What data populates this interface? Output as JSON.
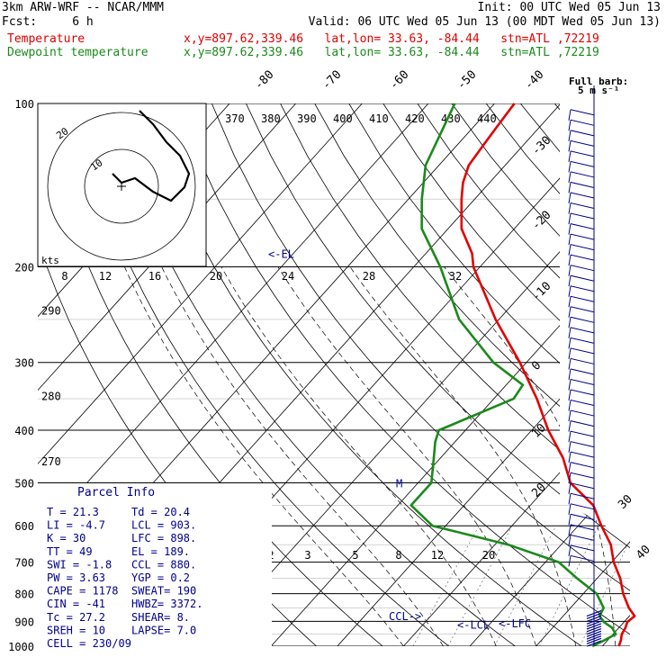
{
  "header": {
    "model": "3km ARW-WRF -- NCAR/MMM",
    "init": "Init: 00 UTC Wed 05 Jun 13",
    "fcst": "Fcst:     6 h",
    "valid": "Valid: 06 UTC Wed 05 Jun 13 (00 MDT Wed 05 Jun 13)",
    "temp_label": "Temperature",
    "temp_info": "x,y=897.62,339.46   lat,lon= 33.63, -84.44   stn=ATL ,72219",
    "dew_label": "Dewpoint temperature",
    "dew_info": "x,y=897.62,339.46   lat,lon= 33.63, -84.44   stn=ATL ,72219"
  },
  "colors": {
    "temperature": "#e00000",
    "dewpoint": "#1a8a1a",
    "info": "#00008b",
    "hodograph": "#000000"
  },
  "wind_barb_label": "Full barb:\n5 m s⁻¹",
  "hodograph": {
    "unit_label": "kts",
    "ring_labels": [
      "20",
      "10"
    ],
    "points_kts": [
      [
        0,
        0
      ],
      [
        2,
        -2
      ],
      [
        5,
        -1
      ],
      [
        9,
        -4
      ],
      [
        13,
        -6
      ],
      [
        16,
        -3
      ],
      [
        17,
        0
      ],
      [
        15,
        4
      ],
      [
        12,
        7
      ],
      [
        9,
        11
      ],
      [
        6,
        14
      ]
    ]
  },
  "parcel_info": {
    "title": "Parcel Info",
    "rows": [
      [
        "T   =    21.3",
        "Td =  20.4"
      ],
      [
        "LI  =    -4.7",
        "LCL =  903."
      ],
      [
        "K   =      30",
        "LFC =  898."
      ],
      [
        "TT  =      49",
        "EL  =  189."
      ],
      [
        "SWI =    -1.8",
        "CCL =  880."
      ],
      [
        "PW  =    3.63",
        "YGP =   0.2"
      ],
      [
        "CAPE =   1178",
        "SWEAT=  190"
      ],
      [
        "CIN  =    -41",
        "HWBZ= 3372."
      ],
      [
        "Tc   =   27.2",
        "SHEAR=   8."
      ],
      [
        "SREH =     10",
        "LAPSE=  7.0"
      ],
      [
        "CELL = 230/09",
        ""
      ]
    ]
  },
  "chart_data": {
    "type": "line",
    "title": "",
    "pressure_levels_hpa": [
      100,
      200,
      300,
      400,
      500,
      600,
      700,
      800,
      900,
      1000
    ],
    "temperature_labels_top": [
      "-80",
      "-70",
      "-60",
      "-50",
      "-40"
    ],
    "temperature_labels_right": [
      "-30",
      "-20",
      "-10",
      "0",
      "10",
      "20",
      "30",
      "40"
    ],
    "theta_labels_top": [
      "370",
      "380",
      "390",
      "400",
      "410",
      "420",
      "430",
      "440"
    ],
    "theta_labels_left": [
      {
        "text": "290",
        "p": 240
      },
      {
        "text": "280",
        "p": 345
      },
      {
        "text": "270",
        "p": 455
      }
    ],
    "mixing_ratio_labels_mid": [
      "8",
      "12",
      "16",
      "20",
      "24",
      "28",
      "32"
    ],
    "mixing_ratio_labels_low": [
      "2",
      "3",
      "5",
      "8",
      "12",
      "20"
    ],
    "series": [
      {
        "name": "Temperature",
        "points": [
          [
            1000,
            22.5
          ],
          [
            975,
            22.0
          ],
          [
            950,
            21.3
          ],
          [
            925,
            21.0
          ],
          [
            903,
            20.5
          ],
          [
            880,
            20.8
          ],
          [
            850,
            18.8
          ],
          [
            800,
            16.0
          ],
          [
            750,
            13.5
          ],
          [
            700,
            10.3
          ],
          [
            650,
            7.5
          ],
          [
            600,
            3.5
          ],
          [
            550,
            -0.5
          ],
          [
            500,
            -7.0
          ],
          [
            450,
            -11.5
          ],
          [
            400,
            -17.5
          ],
          [
            350,
            -23.5
          ],
          [
            300,
            -31.0
          ],
          [
            250,
            -40.5
          ],
          [
            200,
            -51.0
          ],
          [
            189,
            -53.0
          ],
          [
            170,
            -58.0
          ],
          [
            150,
            -62.0
          ],
          [
            140,
            -64.0
          ],
          [
            130,
            -65.5
          ],
          [
            120,
            -66.0
          ],
          [
            110,
            -66.5
          ],
          [
            100,
            -67.0
          ]
        ]
      },
      {
        "name": "Dewpoint temperature",
        "points": [
          [
            1000,
            18.5
          ],
          [
            975,
            19.5
          ],
          [
            950,
            20.4
          ],
          [
            925,
            19.0
          ],
          [
            903,
            17.0
          ],
          [
            880,
            15.5
          ],
          [
            850,
            15.0
          ],
          [
            800,
            12.0
          ],
          [
            750,
            7.0
          ],
          [
            700,
            2.0
          ],
          [
            650,
            -8.0
          ],
          [
            600,
            -22.0
          ],
          [
            550,
            -28.0
          ],
          [
            500,
            -28.0
          ],
          [
            450,
            -31.0
          ],
          [
            420,
            -33.0
          ],
          [
            400,
            -34.0
          ],
          [
            350,
            -27.0
          ],
          [
            330,
            -27.5
          ],
          [
            300,
            -35.0
          ],
          [
            250,
            -46.0
          ],
          [
            200,
            -56.0
          ],
          [
            170,
            -64.0
          ],
          [
            150,
            -68.0
          ],
          [
            130,
            -72.0
          ],
          [
            100,
            -76.0
          ]
        ]
      }
    ],
    "annotations": [
      {
        "text": "<-EL",
        "p": 189
      },
      {
        "text": "M",
        "p": 500
      },
      {
        "text": "CCL->",
        "p": 880
      },
      {
        "text": "<-LCL",
        "p": 903
      },
      {
        "text": "<-LFC",
        "p": 898
      }
    ]
  }
}
